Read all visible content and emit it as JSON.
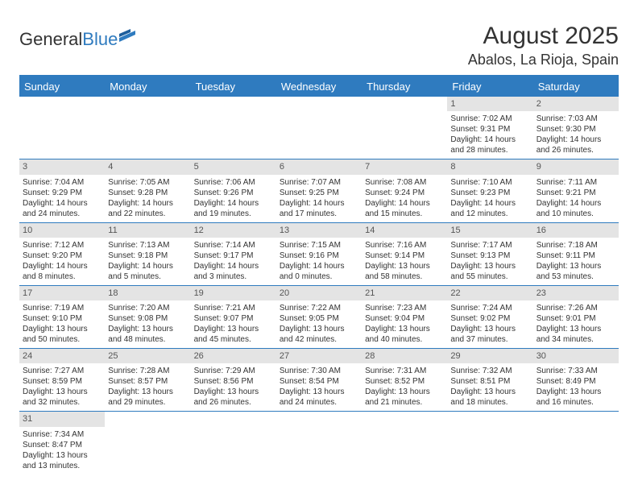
{
  "logo": {
    "part1": "General",
    "part2": "Blue"
  },
  "title": "August 2025",
  "location": "Abalos, La Rioja, Spain",
  "colors": {
    "accent": "#2f7bbf",
    "daynum_bg": "#e4e4e4",
    "text": "#333333",
    "white": "#ffffff"
  },
  "dow": [
    "Sunday",
    "Monday",
    "Tuesday",
    "Wednesday",
    "Thursday",
    "Friday",
    "Saturday"
  ],
  "weeks": [
    [
      null,
      null,
      null,
      null,
      null,
      {
        "n": "1",
        "sr": "Sunrise: 7:02 AM",
        "ss": "Sunset: 9:31 PM",
        "d1": "Daylight: 14 hours",
        "d2": "and 28 minutes."
      },
      {
        "n": "2",
        "sr": "Sunrise: 7:03 AM",
        "ss": "Sunset: 9:30 PM",
        "d1": "Daylight: 14 hours",
        "d2": "and 26 minutes."
      }
    ],
    [
      {
        "n": "3",
        "sr": "Sunrise: 7:04 AM",
        "ss": "Sunset: 9:29 PM",
        "d1": "Daylight: 14 hours",
        "d2": "and 24 minutes."
      },
      {
        "n": "4",
        "sr": "Sunrise: 7:05 AM",
        "ss": "Sunset: 9:28 PM",
        "d1": "Daylight: 14 hours",
        "d2": "and 22 minutes."
      },
      {
        "n": "5",
        "sr": "Sunrise: 7:06 AM",
        "ss": "Sunset: 9:26 PM",
        "d1": "Daylight: 14 hours",
        "d2": "and 19 minutes."
      },
      {
        "n": "6",
        "sr": "Sunrise: 7:07 AM",
        "ss": "Sunset: 9:25 PM",
        "d1": "Daylight: 14 hours",
        "d2": "and 17 minutes."
      },
      {
        "n": "7",
        "sr": "Sunrise: 7:08 AM",
        "ss": "Sunset: 9:24 PM",
        "d1": "Daylight: 14 hours",
        "d2": "and 15 minutes."
      },
      {
        "n": "8",
        "sr": "Sunrise: 7:10 AM",
        "ss": "Sunset: 9:23 PM",
        "d1": "Daylight: 14 hours",
        "d2": "and 12 minutes."
      },
      {
        "n": "9",
        "sr": "Sunrise: 7:11 AM",
        "ss": "Sunset: 9:21 PM",
        "d1": "Daylight: 14 hours",
        "d2": "and 10 minutes."
      }
    ],
    [
      {
        "n": "10",
        "sr": "Sunrise: 7:12 AM",
        "ss": "Sunset: 9:20 PM",
        "d1": "Daylight: 14 hours",
        "d2": "and 8 minutes."
      },
      {
        "n": "11",
        "sr": "Sunrise: 7:13 AM",
        "ss": "Sunset: 9:18 PM",
        "d1": "Daylight: 14 hours",
        "d2": "and 5 minutes."
      },
      {
        "n": "12",
        "sr": "Sunrise: 7:14 AM",
        "ss": "Sunset: 9:17 PM",
        "d1": "Daylight: 14 hours",
        "d2": "and 3 minutes."
      },
      {
        "n": "13",
        "sr": "Sunrise: 7:15 AM",
        "ss": "Sunset: 9:16 PM",
        "d1": "Daylight: 14 hours",
        "d2": "and 0 minutes."
      },
      {
        "n": "14",
        "sr": "Sunrise: 7:16 AM",
        "ss": "Sunset: 9:14 PM",
        "d1": "Daylight: 13 hours",
        "d2": "and 58 minutes."
      },
      {
        "n": "15",
        "sr": "Sunrise: 7:17 AM",
        "ss": "Sunset: 9:13 PM",
        "d1": "Daylight: 13 hours",
        "d2": "and 55 minutes."
      },
      {
        "n": "16",
        "sr": "Sunrise: 7:18 AM",
        "ss": "Sunset: 9:11 PM",
        "d1": "Daylight: 13 hours",
        "d2": "and 53 minutes."
      }
    ],
    [
      {
        "n": "17",
        "sr": "Sunrise: 7:19 AM",
        "ss": "Sunset: 9:10 PM",
        "d1": "Daylight: 13 hours",
        "d2": "and 50 minutes."
      },
      {
        "n": "18",
        "sr": "Sunrise: 7:20 AM",
        "ss": "Sunset: 9:08 PM",
        "d1": "Daylight: 13 hours",
        "d2": "and 48 minutes."
      },
      {
        "n": "19",
        "sr": "Sunrise: 7:21 AM",
        "ss": "Sunset: 9:07 PM",
        "d1": "Daylight: 13 hours",
        "d2": "and 45 minutes."
      },
      {
        "n": "20",
        "sr": "Sunrise: 7:22 AM",
        "ss": "Sunset: 9:05 PM",
        "d1": "Daylight: 13 hours",
        "d2": "and 42 minutes."
      },
      {
        "n": "21",
        "sr": "Sunrise: 7:23 AM",
        "ss": "Sunset: 9:04 PM",
        "d1": "Daylight: 13 hours",
        "d2": "and 40 minutes."
      },
      {
        "n": "22",
        "sr": "Sunrise: 7:24 AM",
        "ss": "Sunset: 9:02 PM",
        "d1": "Daylight: 13 hours",
        "d2": "and 37 minutes."
      },
      {
        "n": "23",
        "sr": "Sunrise: 7:26 AM",
        "ss": "Sunset: 9:01 PM",
        "d1": "Daylight: 13 hours",
        "d2": "and 34 minutes."
      }
    ],
    [
      {
        "n": "24",
        "sr": "Sunrise: 7:27 AM",
        "ss": "Sunset: 8:59 PM",
        "d1": "Daylight: 13 hours",
        "d2": "and 32 minutes."
      },
      {
        "n": "25",
        "sr": "Sunrise: 7:28 AM",
        "ss": "Sunset: 8:57 PM",
        "d1": "Daylight: 13 hours",
        "d2": "and 29 minutes."
      },
      {
        "n": "26",
        "sr": "Sunrise: 7:29 AM",
        "ss": "Sunset: 8:56 PM",
        "d1": "Daylight: 13 hours",
        "d2": "and 26 minutes."
      },
      {
        "n": "27",
        "sr": "Sunrise: 7:30 AM",
        "ss": "Sunset: 8:54 PM",
        "d1": "Daylight: 13 hours",
        "d2": "and 24 minutes."
      },
      {
        "n": "28",
        "sr": "Sunrise: 7:31 AM",
        "ss": "Sunset: 8:52 PM",
        "d1": "Daylight: 13 hours",
        "d2": "and 21 minutes."
      },
      {
        "n": "29",
        "sr": "Sunrise: 7:32 AM",
        "ss": "Sunset: 8:51 PM",
        "d1": "Daylight: 13 hours",
        "d2": "and 18 minutes."
      },
      {
        "n": "30",
        "sr": "Sunrise: 7:33 AM",
        "ss": "Sunset: 8:49 PM",
        "d1": "Daylight: 13 hours",
        "d2": "and 16 minutes."
      }
    ],
    [
      {
        "n": "31",
        "sr": "Sunrise: 7:34 AM",
        "ss": "Sunset: 8:47 PM",
        "d1": "Daylight: 13 hours",
        "d2": "and 13 minutes."
      },
      null,
      null,
      null,
      null,
      null,
      null
    ]
  ]
}
